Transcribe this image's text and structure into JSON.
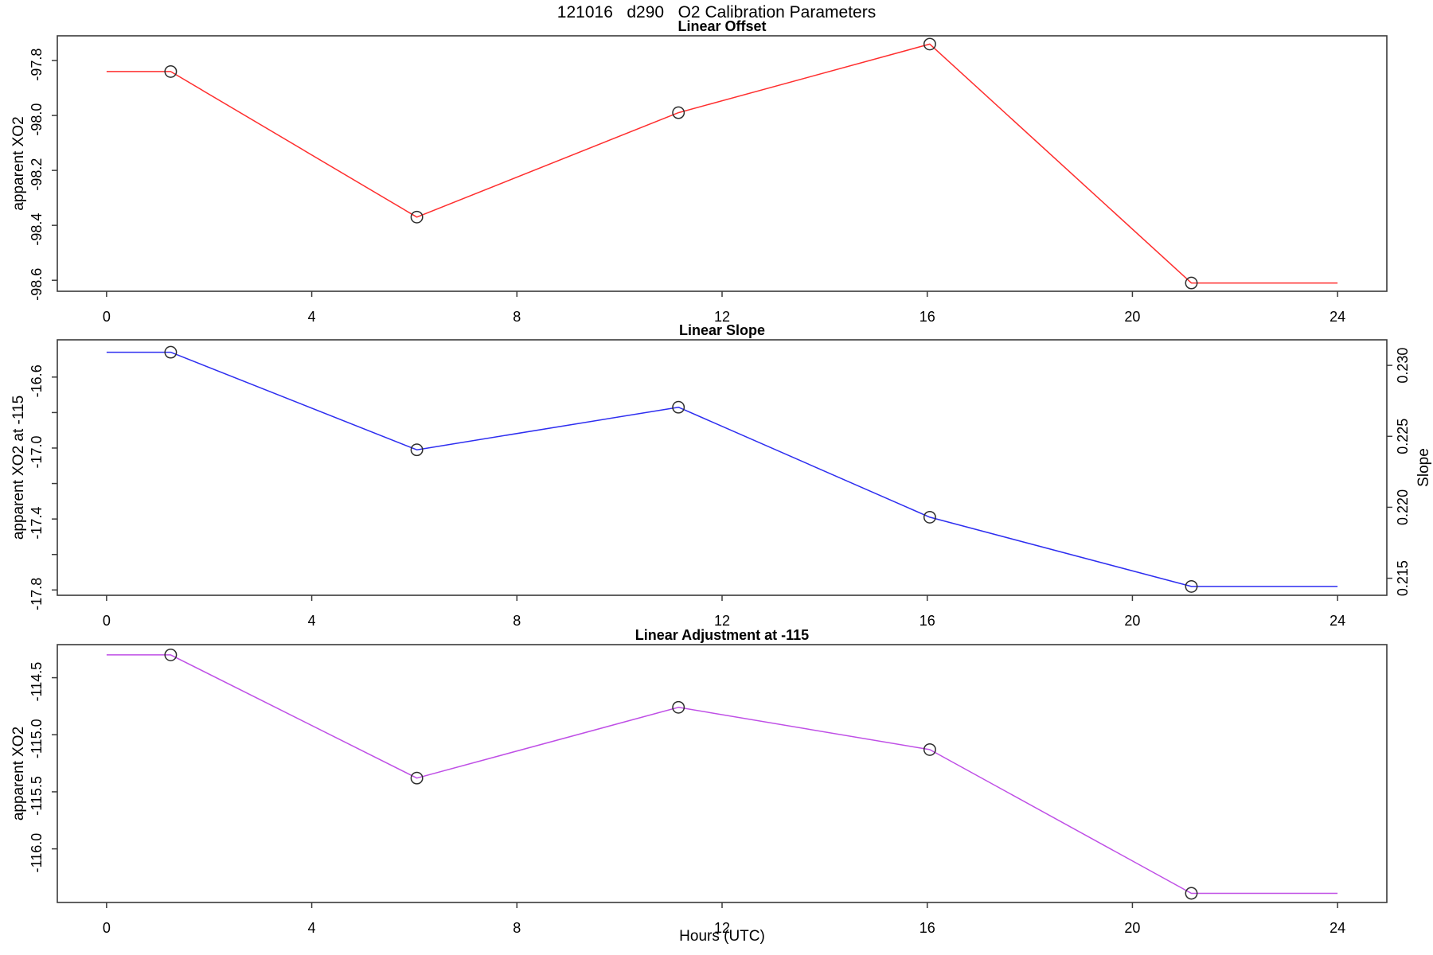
{
  "header": {
    "title": "121016   d290   O2 Calibration Parameters"
  },
  "colors": {
    "offset_line": "#ff2e2e",
    "slope_line": "#2e2ef0",
    "adjustment_line": "#bf4fe6",
    "marker": "#2d2d2d",
    "axis": "#3a3a3a",
    "background": "#ffffff",
    "text": "#000000"
  },
  "x_axis": {
    "label": "Hours (UTC)",
    "ticks": [
      0,
      4,
      8,
      12,
      16,
      20,
      24
    ],
    "tick_labels": [
      "0",
      "4",
      "8",
      "12",
      "16",
      "20",
      "24"
    ],
    "xlim": [
      -0.96,
      24.96
    ]
  },
  "chart_data": [
    {
      "type": "line",
      "title": "Linear Offset",
      "ylabel": "apparent XO2",
      "color_key": "offset_line",
      "marker": "open-circle",
      "grid": false,
      "x": [
        1.25,
        6.05,
        11.15,
        16.05,
        21.15
      ],
      "y": [
        -97.84,
        -98.37,
        -97.99,
        -97.74,
        -98.61
      ],
      "extend_flat": {
        "x_start": 0,
        "x_end": 24
      },
      "xlim": [
        -0.96,
        24.96
      ],
      "ylim": [
        -98.64,
        -97.71
      ],
      "yticks": [
        -97.8,
        -98.0,
        -98.2,
        -98.4,
        -98.6
      ],
      "ytick_labels": [
        "-97.8",
        "-98.0",
        "-98.2",
        "-98.4",
        "-98.6"
      ],
      "xtick_labels": [
        "0",
        "4",
        "8",
        "12",
        "16",
        "20",
        "24"
      ]
    },
    {
      "type": "line",
      "title": "Linear Slope",
      "ylabel": "apparent XO2 at -115",
      "y2label": "Slope",
      "color_key": "slope_line",
      "marker": "open-circle",
      "grid": false,
      "x": [
        1.25,
        6.05,
        11.15,
        16.05,
        21.15
      ],
      "y": [
        -16.46,
        -17.01,
        -16.77,
        -17.39,
        -17.78
      ],
      "slope_values": [
        0.231,
        0.2238,
        0.2269,
        0.2188,
        0.214
      ],
      "extend_flat": {
        "x_start": 0,
        "x_end": 24
      },
      "xlim": [
        -0.96,
        24.96
      ],
      "ylim": [
        -17.83,
        -16.39
      ],
      "yticks": [
        -16.6,
        -16.8,
        -17.0,
        -17.2,
        -17.4,
        -17.6,
        -17.8
      ],
      "ytick_labels": [
        "-16.6",
        "",
        "-17.0",
        "",
        "-17.4",
        "",
        "-17.8"
      ],
      "y2lim": [
        0.2138,
        0.2318
      ],
      "y2ticks": [
        0.215,
        0.22,
        0.225,
        0.23
      ],
      "y2tick_labels": [
        "0.215",
        "0.220",
        "0.225",
        "0.230"
      ],
      "xtick_labels": [
        "0",
        "4",
        "8",
        "12",
        "16",
        "20",
        "24"
      ]
    },
    {
      "type": "line",
      "title": "Linear Adjustment at -115",
      "ylabel": "apparent XO2",
      "xlabel": "Hours (UTC)",
      "color_key": "adjustment_line",
      "marker": "open-circle",
      "grid": false,
      "x": [
        1.25,
        6.05,
        11.15,
        16.05,
        21.15
      ],
      "y": [
        -114.3,
        -115.38,
        -114.76,
        -115.13,
        -116.39
      ],
      "extend_flat": {
        "x_start": 0,
        "x_end": 24
      },
      "xlim": [
        -0.96,
        24.96
      ],
      "ylim": [
        -116.47,
        -114.21
      ],
      "yticks": [
        -114.5,
        -115.0,
        -115.5,
        -116.0
      ],
      "ytick_labels": [
        "-114.5",
        "-115.0",
        "-115.5",
        "-116.0"
      ],
      "xtick_labels": [
        "0",
        "4",
        "8",
        "12",
        "16",
        "20",
        "24"
      ]
    }
  ]
}
